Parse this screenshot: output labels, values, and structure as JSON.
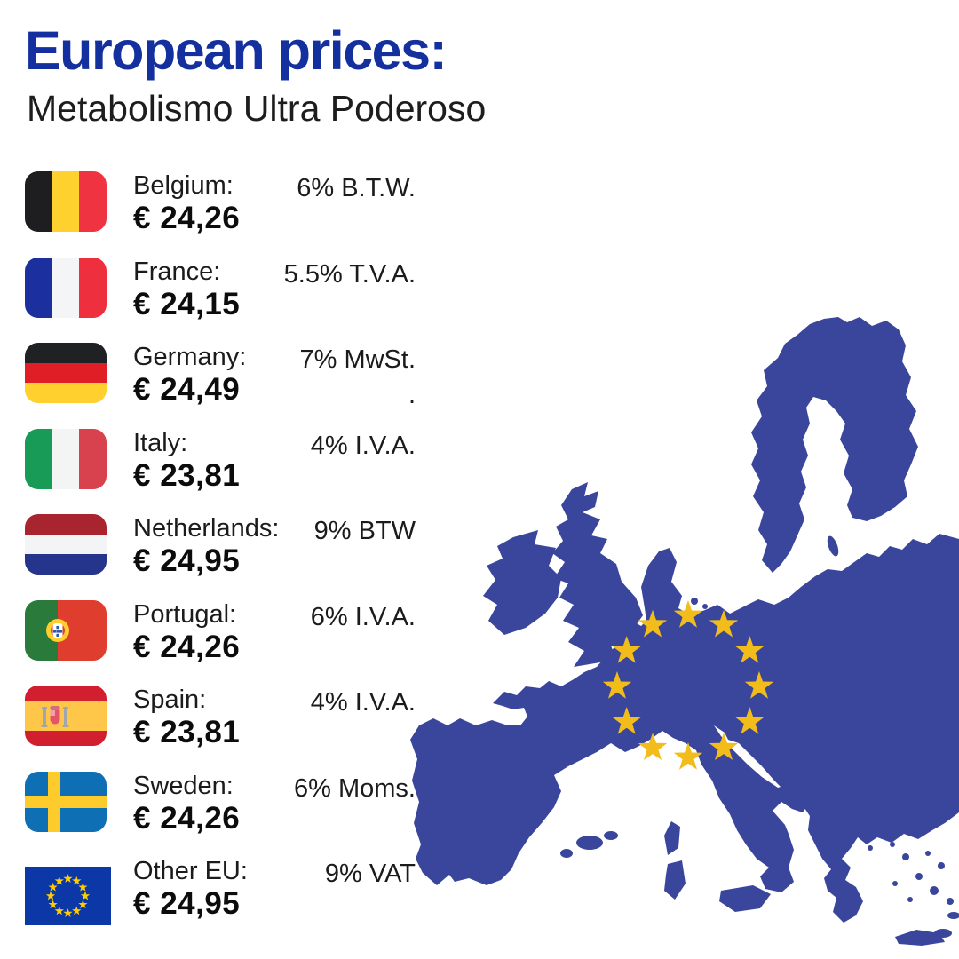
{
  "header": {
    "title": "European prices:",
    "subtitle": "Metabolismo Ultra Poderoso"
  },
  "rows": [
    {
      "country": "Belgium:",
      "price": "€ 24,26",
      "tax": "6% B.T.W.",
      "flag": "belgium"
    },
    {
      "country": "France:",
      "price": "€ 24,15",
      "tax": "5.5% T.V.A.",
      "flag": "france"
    },
    {
      "country": "Germany:",
      "price": "€ 24,49",
      "tax": "7% MwSt.",
      "tax_note": ".",
      "flag": "germany"
    },
    {
      "country": "Italy:",
      "price": "€ 23,81",
      "tax": "4% I.V.A.",
      "flag": "italy"
    },
    {
      "country": "Netherlands:",
      "price": "€ 24,95",
      "tax": "9% BTW",
      "flag": "netherlands"
    },
    {
      "country": "Portugal:",
      "price": "€ 24,26",
      "tax": "6% I.V.A.",
      "flag": "portugal"
    },
    {
      "country": "Spain:",
      "price": "€ 23,81",
      "tax": "4% I.V.A.",
      "flag": "spain"
    },
    {
      "country": "Sweden:",
      "price": "€ 24,26",
      "tax": "6% Moms.",
      "flag": "sweden"
    },
    {
      "country": "Other EU:",
      "price": "€ 24,95",
      "tax": "9% VAT",
      "flag": "eu"
    }
  ],
  "map": {
    "name": "eu-member-states-silhouette",
    "star_count": 12
  },
  "colors": {
    "title_blue": "#14309E",
    "text_dark": "#1b1b1b",
    "map_blue": "#3A459C",
    "star_gold": "#F2BC1B",
    "eu_flag_blue": "#0B38A6",
    "eu_flag_star": "#FFCC00"
  }
}
